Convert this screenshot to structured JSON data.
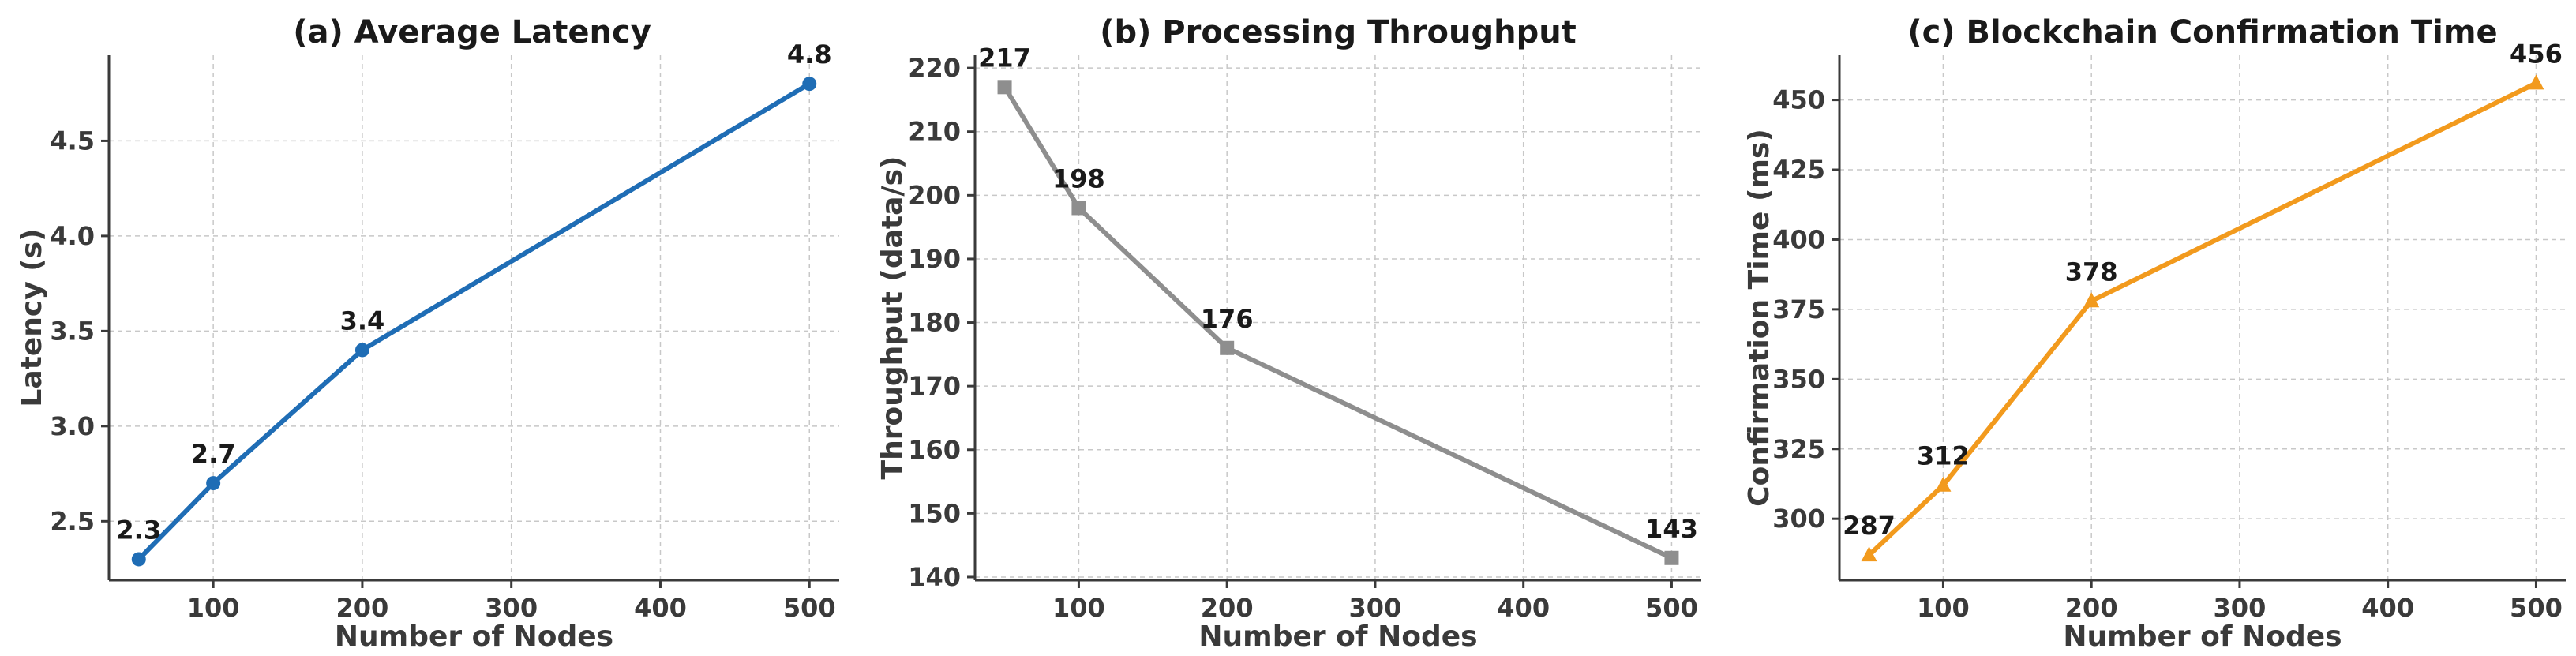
{
  "chart_data": [
    {
      "type": "line",
      "title": "(a) Average Latency",
      "xlabel": "Number of Nodes",
      "ylabel": "Latency (s)",
      "x": [
        50,
        100,
        200,
        500
      ],
      "series": [
        {
          "values": [
            2.3,
            2.7,
            3.4,
            4.8
          ],
          "color": "#1f6db5",
          "marker": "circle"
        }
      ],
      "data_labels": [
        "2.3",
        "2.7",
        "3.4",
        "4.8"
      ],
      "xlim": [
        30,
        520
      ],
      "ylim": [
        2.19,
        4.95
      ],
      "xticks": [
        100,
        200,
        300,
        400,
        500
      ],
      "xtick_labels": [
        "100",
        "200",
        "300",
        "400",
        "500"
      ],
      "yticks": [
        2.5,
        3.0,
        3.5,
        4.0,
        4.5
      ],
      "ytick_labels": [
        "2.5",
        "3.0",
        "3.5",
        "4.0",
        "4.5"
      ],
      "grid": true
    },
    {
      "type": "line",
      "title": "(b) Processing Throughput",
      "xlabel": "Number of Nodes",
      "ylabel": "Throughput (data/s)",
      "x": [
        50,
        100,
        200,
        500
      ],
      "series": [
        {
          "values": [
            217,
            198,
            176,
            143
          ],
          "color": "#8e8e8e",
          "marker": "square"
        }
      ],
      "data_labels": [
        "217",
        "198",
        "176",
        "143"
      ],
      "xlim": [
        30,
        520
      ],
      "ylim": [
        139.5,
        222
      ],
      "xticks": [
        100,
        200,
        300,
        400,
        500
      ],
      "xtick_labels": [
        "100",
        "200",
        "300",
        "400",
        "500"
      ],
      "yticks": [
        140,
        150,
        160,
        170,
        180,
        190,
        200,
        210,
        220
      ],
      "ytick_labels": [
        "140",
        "150",
        "160",
        "170",
        "180",
        "190",
        "200",
        "210",
        "220"
      ],
      "grid": true
    },
    {
      "type": "line",
      "title": "(c) Blockchain Confirmation Time",
      "xlabel": "Number of Nodes",
      "ylabel": "Confirmation Time (ms)",
      "x": [
        50,
        100,
        200,
        500
      ],
      "series": [
        {
          "values": [
            287,
            312,
            378,
            456
          ],
          "color": "#f29a1d",
          "marker": "triangle"
        }
      ],
      "data_labels": [
        "287",
        "312",
        "378",
        "456"
      ],
      "xlim": [
        30,
        520
      ],
      "ylim": [
        278,
        466
      ],
      "xticks": [
        100,
        200,
        300,
        400,
        500
      ],
      "xtick_labels": [
        "100",
        "200",
        "300",
        "400",
        "500"
      ],
      "yticks": [
        300,
        325,
        350,
        375,
        400,
        425,
        450
      ],
      "ytick_labels": [
        "300",
        "325",
        "350",
        "375",
        "400",
        "425",
        "450"
      ],
      "grid": true
    }
  ]
}
